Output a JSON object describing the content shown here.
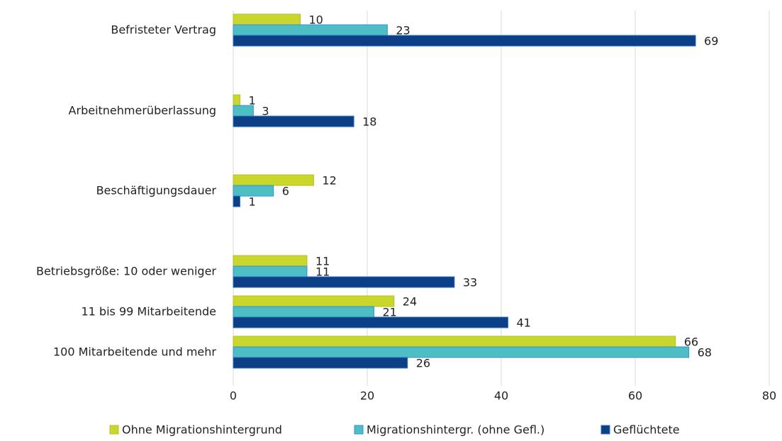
{
  "chart_data": {
    "type": "bar",
    "orientation": "horizontal",
    "categories": [
      "Befristeter Vertrag",
      "Arbeitnehmerüberlassung",
      "Beschäftigungsdauer",
      "Betriebsgröße: 10 oder weniger",
      "11 bis 99 Mitarbeitende",
      "100 Mitarbeitende und mehr"
    ],
    "series": [
      {
        "name": "Ohne Migrationshintergrund",
        "color": "#c9d62b",
        "values": [
          10,
          1,
          12,
          11,
          24,
          66
        ]
      },
      {
        "name": "Migrationshintergr. (ohne Gefl.)",
        "color": "#4dbec3",
        "values": [
          23,
          3,
          6,
          11,
          21,
          68
        ]
      },
      {
        "name": "Geflüchtete",
        "color": "#0c3f85",
        "values": [
          69,
          18,
          1,
          33,
          41,
          26
        ]
      }
    ],
    "xlim": [
      0,
      80
    ],
    "xticks": [
      0,
      20,
      40,
      60,
      80
    ],
    "grid": true,
    "legend": "bottom"
  }
}
